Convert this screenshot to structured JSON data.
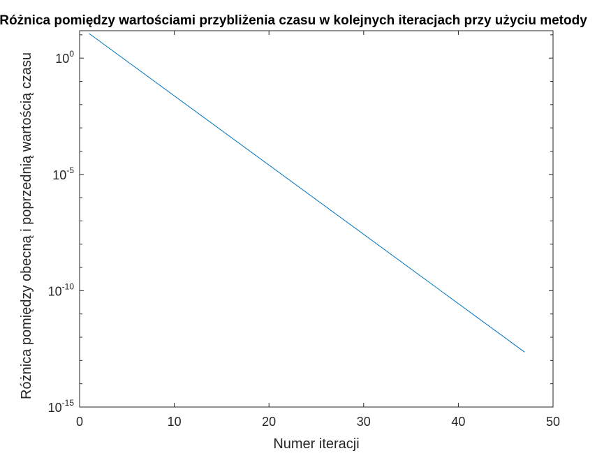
{
  "chart_data": {
    "type": "line",
    "title": "Różnica pomiędzy wartościami przybliżenia czasu w kolejnych iteracjach przy użyciu metody",
    "xlabel": "Numer iteracji",
    "ylabel": "Różnica pomiędzy obecną i poprzednią wartością czasu",
    "xlim": [
      0,
      50
    ],
    "ylim": [
      1e-15,
      15
    ],
    "yscale": "log",
    "xticks": [
      0,
      10,
      20,
      30,
      40,
      50
    ],
    "yticks": [
      {
        "value": 1,
        "base": "10",
        "exp": "0"
      },
      {
        "value": 1e-05,
        "base": "10",
        "exp": "-5"
      },
      {
        "value": 1e-10,
        "base": "10",
        "exp": "-10"
      },
      {
        "value": 1e-15,
        "base": "10",
        "exp": "-15"
      }
    ],
    "grid": false,
    "series": [
      {
        "color": "#0072bd",
        "x": [
          1,
          47
        ],
        "y": [
          11.4,
          2.3e-13
        ]
      }
    ]
  }
}
